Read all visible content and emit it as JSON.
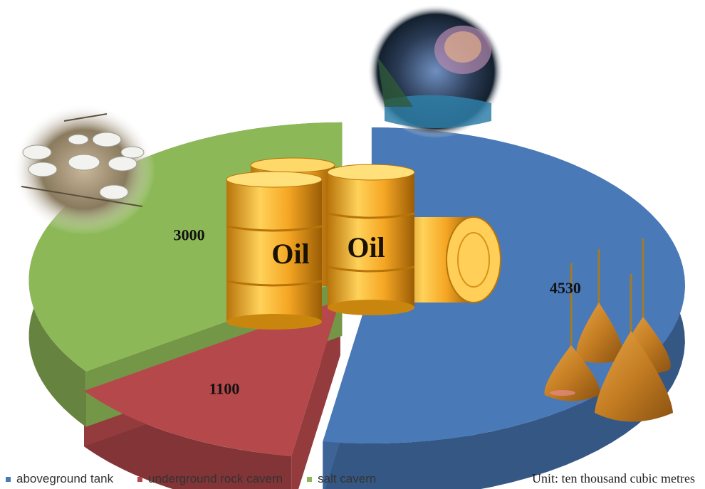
{
  "chart_data": {
    "type": "pie",
    "style": "3d-exploded",
    "categories": [
      "aboveground tank",
      "underground rock cavern",
      "salt cavern"
    ],
    "values": [
      4530,
      1100,
      3000
    ],
    "value_labels": [
      "4530",
      "1100",
      "3000"
    ],
    "colors": [
      "#4a79b8",
      "#b5484b",
      "#8db857"
    ],
    "legend_position": "bottom-left",
    "unit": "Unit: ten thousand cubic metres",
    "barrel_labels": [
      "Oil",
      "Oil"
    ]
  },
  "icons": [
    "oil-tank-farm-photo",
    "rock-cavern-photo",
    "oil-barrels-illustration",
    "salt-cavern-cones-illustration"
  ]
}
